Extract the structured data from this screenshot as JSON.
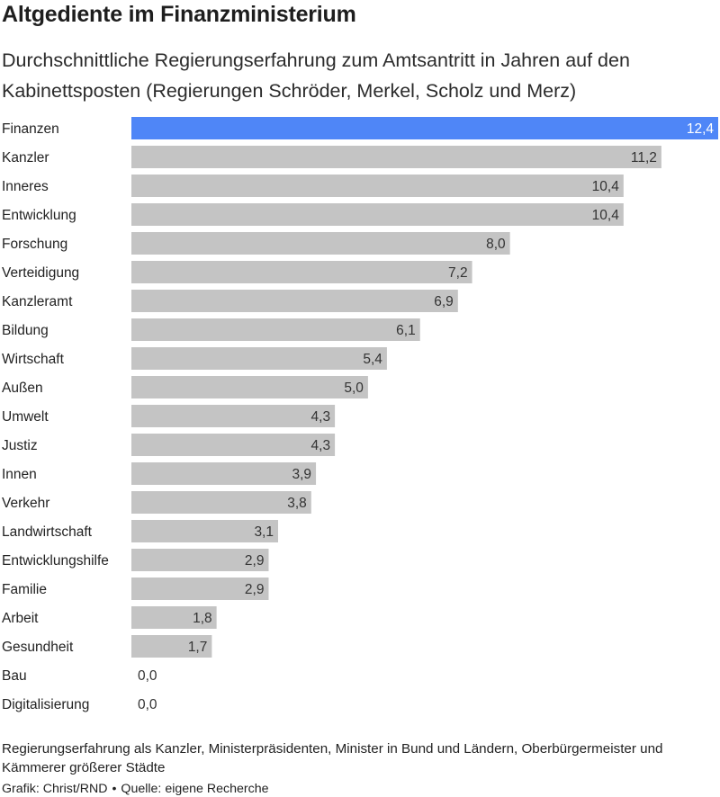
{
  "title": "Altgediente im Finanzministerium",
  "subtitle": "Durchschnittliche Regierungserfahrung zum Amtsantritt in Jahren auf den Kabinettsposten (Regierungen Schröder, Merkel, Scholz und Merz)",
  "footnote": "Regierungserfahrung als Kanzler, Ministerpräsidenten, Minister in Bund und Ländern, Oberbürgermeister und Kämmerer größerer Städte",
  "credit": {
    "graphic": "Grafik: Christ/RND",
    "separator": "•",
    "source": "Quelle: eigene Recherche"
  },
  "colors": {
    "highlight": "#4f86f7",
    "bar": "#c4c4c4",
    "highlight_label": "#ffffff",
    "label": "#333333"
  },
  "chart_data": {
    "type": "bar",
    "orientation": "horizontal",
    "categories": [
      "Finanzen",
      "Kanzler",
      "Inneres",
      "Entwicklung",
      "Forschung",
      "Verteidigung",
      "Kanzleramt",
      "Bildung",
      "Wirtschaft",
      "Außen",
      "Umwelt",
      "Justiz",
      "Innen",
      "Verkehr",
      "Landwirtschaft",
      "Entwicklungshilfe",
      "Familie",
      "Arbeit",
      "Gesundheit",
      "Bau",
      "Digitalisierung"
    ],
    "values": [
      12.4,
      11.2,
      10.4,
      10.4,
      8.0,
      7.2,
      6.9,
      6.1,
      5.4,
      5.0,
      4.3,
      4.3,
      3.9,
      3.8,
      3.1,
      2.9,
      2.9,
      1.8,
      1.7,
      0.0,
      0.0
    ],
    "value_labels": [
      "12,4",
      "11,2",
      "10,4",
      "10,4",
      "8,0",
      "7,2",
      "6,9",
      "6,1",
      "5,4",
      "5,0",
      "4,3",
      "4,3",
      "3,9",
      "3,8",
      "3,1",
      "2,9",
      "2,9",
      "1,8",
      "1,7",
      "0,0",
      "0,0"
    ],
    "highlight_index": 0,
    "xlim": [
      0,
      12.4
    ],
    "grid": false,
    "legend": "none",
    "xlabel": "",
    "ylabel": ""
  }
}
